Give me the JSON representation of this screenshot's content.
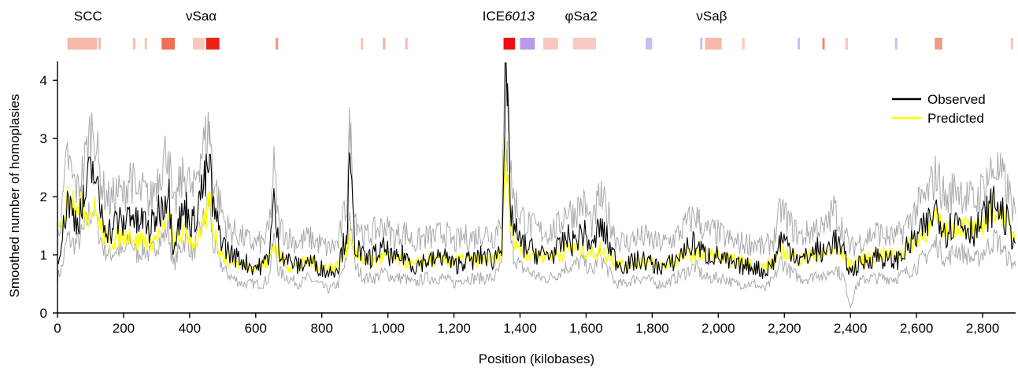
{
  "chart_data": {
    "type": "line",
    "title": "",
    "xlabel": "Position (kilobases)",
    "ylabel": "Smoothed number of homoplasies",
    "xlim": [
      0,
      2900
    ],
    "ylim": [
      0,
      4.3
    ],
    "x_ticks": [
      0,
      200,
      400,
      600,
      800,
      1000,
      1200,
      1400,
      1600,
      1800,
      2000,
      2200,
      2400,
      2600,
      2800
    ],
    "x_tick_labels": [
      "0",
      "200",
      "400",
      "600",
      "800",
      "1,000",
      "1,200",
      "1,400",
      "1,600",
      "1,800",
      "2,000",
      "2,200",
      "2,400",
      "2,600",
      "2,800"
    ],
    "y_ticks": [
      0,
      1,
      2,
      3,
      4
    ],
    "y_tick_labels": [
      "0",
      "1",
      "2",
      "3",
      "4"
    ],
    "grid": false,
    "legend": {
      "placement": "top-right",
      "entries": [
        {
          "label": "Observed",
          "color": "#000000"
        },
        {
          "label": "Predicted",
          "color": "#ffff00"
        }
      ]
    },
    "band_color": "#aaaaaa",
    "series": [
      {
        "name": "Observed",
        "color": "#000000",
        "x": [
          0,
          15,
          30,
          45,
          60,
          80,
          95,
          110,
          125,
          140,
          160,
          180,
          200,
          220,
          240,
          260,
          280,
          300,
          320,
          335,
          350,
          370,
          390,
          410,
          430,
          450,
          460,
          470,
          490,
          510,
          530,
          560,
          590,
          620,
          640,
          655,
          670,
          700,
          730,
          760,
          790,
          820,
          850,
          875,
          885,
          900,
          930,
          960,
          990,
          1020,
          1050,
          1080,
          1110,
          1140,
          1170,
          1200,
          1230,
          1260,
          1290,
          1320,
          1345,
          1355,
          1362,
          1370,
          1380,
          1400,
          1430,
          1460,
          1490,
          1520,
          1540,
          1560,
          1590,
          1620,
          1640,
          1660,
          1690,
          1720,
          1750,
          1780,
          1810,
          1840,
          1870,
          1900,
          1930,
          1960,
          1990,
          2020,
          2050,
          2080,
          2110,
          2140,
          2170,
          2190,
          2220,
          2250,
          2280,
          2300,
          2320,
          2350,
          2380,
          2400,
          2420,
          2450,
          2480,
          2510,
          2540,
          2570,
          2600,
          2630,
          2660,
          2690,
          2720,
          2750,
          2780,
          2810,
          2840,
          2870,
          2900
        ],
        "y": [
          1.0,
          1.3,
          2.0,
          1.7,
          1.6,
          1.9,
          2.3,
          2.5,
          1.9,
          1.6,
          1.4,
          1.6,
          1.5,
          1.8,
          1.5,
          1.6,
          1.4,
          1.7,
          1.9,
          2.2,
          1.2,
          1.6,
          1.8,
          1.5,
          2.0,
          2.3,
          2.6,
          1.8,
          1.4,
          1.1,
          1.0,
          0.9,
          0.8,
          0.8,
          1.0,
          1.9,
          1.1,
          0.9,
          0.8,
          0.9,
          0.8,
          0.7,
          0.8,
          1.4,
          2.5,
          1.2,
          0.9,
          1.0,
          1.1,
          0.9,
          1.0,
          0.8,
          0.9,
          0.9,
          1.0,
          0.8,
          0.9,
          0.9,
          1.0,
          0.9,
          1.2,
          3.7,
          3.6,
          1.9,
          1.5,
          1.2,
          1.1,
          1.0,
          1.0,
          1.1,
          1.3,
          1.2,
          1.4,
          1.1,
          1.5,
          1.3,
          0.9,
          0.8,
          0.9,
          0.9,
          0.8,
          0.8,
          0.9,
          1.1,
          1.2,
          1.0,
          1.0,
          0.9,
          0.8,
          0.8,
          0.8,
          0.7,
          0.9,
          1.3,
          1.1,
          0.9,
          1.0,
          1.1,
          1.0,
          1.3,
          1.0,
          0.7,
          0.8,
          0.9,
          1.0,
          0.9,
          0.9,
          1.1,
          1.3,
          1.5,
          1.8,
          1.4,
          1.6,
          1.5,
          1.4,
          1.7,
          1.9,
          1.6,
          1.2
        ],
        "band_low": [
          0.6,
          0.8,
          1.3,
          1.2,
          1.2,
          1.4,
          1.7,
          1.8,
          1.4,
          1.1,
          1.0,
          1.1,
          1.0,
          1.3,
          1.0,
          1.1,
          1.0,
          1.2,
          1.3,
          1.5,
          0.8,
          1.1,
          1.3,
          1.0,
          1.4,
          1.7,
          1.9,
          1.2,
          0.9,
          0.7,
          0.6,
          0.5,
          0.5,
          0.5,
          0.6,
          1.3,
          0.7,
          0.6,
          0.5,
          0.6,
          0.5,
          0.4,
          0.5,
          0.9,
          1.8,
          0.8,
          0.6,
          0.6,
          0.7,
          0.6,
          0.6,
          0.5,
          0.6,
          0.6,
          0.6,
          0.5,
          0.6,
          0.6,
          0.6,
          0.6,
          0.8,
          2.7,
          2.6,
          1.3,
          1.0,
          0.8,
          0.7,
          0.6,
          0.6,
          0.7,
          0.8,
          0.8,
          0.9,
          0.7,
          1.0,
          0.8,
          0.5,
          0.5,
          0.6,
          0.6,
          0.5,
          0.5,
          0.6,
          0.7,
          0.8,
          0.6,
          0.6,
          0.6,
          0.5,
          0.5,
          0.5,
          0.4,
          0.6,
          0.9,
          0.7,
          0.6,
          0.6,
          0.7,
          0.6,
          0.8,
          0.6,
          0.1,
          0.5,
          0.6,
          0.6,
          0.6,
          0.6,
          0.7,
          0.8,
          1.0,
          1.2,
          0.9,
          1.1,
          1.0,
          0.9,
          1.1,
          1.3,
          1.0,
          0.8
        ],
        "band_high": [
          1.4,
          1.8,
          2.7,
          2.3,
          2.1,
          2.5,
          3.0,
          3.3,
          2.5,
          2.1,
          1.9,
          2.1,
          2.0,
          2.4,
          2.0,
          2.1,
          1.9,
          2.3,
          2.6,
          2.9,
          1.7,
          2.2,
          2.4,
          2.0,
          2.7,
          3.0,
          3.2,
          2.4,
          1.9,
          1.5,
          1.4,
          1.3,
          1.2,
          1.2,
          1.4,
          2.5,
          1.5,
          1.3,
          1.2,
          1.3,
          1.2,
          1.1,
          1.2,
          1.9,
          3.2,
          1.7,
          1.3,
          1.4,
          1.5,
          1.3,
          1.4,
          1.2,
          1.3,
          1.3,
          1.4,
          1.2,
          1.3,
          1.3,
          1.4,
          1.3,
          1.7,
          4.3,
          4.2,
          2.5,
          2.0,
          1.7,
          1.5,
          1.4,
          1.4,
          1.5,
          1.8,
          1.7,
          1.9,
          1.5,
          2.0,
          1.8,
          1.3,
          1.2,
          1.3,
          1.3,
          1.2,
          1.2,
          1.3,
          1.5,
          1.7,
          1.4,
          1.4,
          1.3,
          1.2,
          1.2,
          1.2,
          1.1,
          1.3,
          1.8,
          1.5,
          1.3,
          1.4,
          1.5,
          1.4,
          1.8,
          1.4,
          1.1,
          1.2,
          1.3,
          1.4,
          1.3,
          1.3,
          1.5,
          1.8,
          2.0,
          2.4,
          1.9,
          2.2,
          2.0,
          1.9,
          2.3,
          2.5,
          2.2,
          1.7
        ]
      },
      {
        "name": "Predicted",
        "color": "#ffff00",
        "x": [
          0,
          15,
          30,
          45,
          60,
          80,
          95,
          110,
          125,
          140,
          160,
          180,
          200,
          220,
          240,
          260,
          280,
          300,
          320,
          335,
          350,
          370,
          390,
          410,
          430,
          450,
          460,
          470,
          490,
          510,
          530,
          560,
          590,
          620,
          640,
          655,
          670,
          700,
          730,
          760,
          790,
          820,
          850,
          875,
          885,
          900,
          930,
          960,
          990,
          1020,
          1050,
          1080,
          1110,
          1140,
          1170,
          1200,
          1230,
          1260,
          1290,
          1320,
          1345,
          1355,
          1362,
          1370,
          1380,
          1400,
          1430,
          1460,
          1490,
          1520,
          1540,
          1560,
          1590,
          1620,
          1640,
          1660,
          1690,
          1720,
          1750,
          1780,
          1810,
          1840,
          1870,
          1900,
          1930,
          1960,
          1990,
          2020,
          2050,
          2080,
          2110,
          2140,
          2170,
          2190,
          2220,
          2250,
          2280,
          2300,
          2320,
          2350,
          2380,
          2400,
          2420,
          2450,
          2480,
          2510,
          2540,
          2570,
          2600,
          2630,
          2660,
          2690,
          2720,
          2750,
          2780,
          2810,
          2840,
          2870,
          2900
        ],
        "y": [
          1.4,
          1.5,
          2.0,
          2.0,
          1.9,
          1.8,
          1.7,
          1.8,
          1.6,
          1.3,
          1.2,
          1.3,
          1.3,
          1.4,
          1.2,
          1.3,
          1.2,
          1.3,
          1.4,
          1.8,
          1.2,
          1.3,
          1.4,
          1.2,
          1.3,
          1.6,
          2.0,
          1.5,
          1.1,
          0.9,
          0.9,
          0.8,
          0.8,
          0.8,
          0.9,
          1.2,
          1.0,
          0.8,
          0.8,
          0.9,
          0.8,
          0.8,
          0.8,
          1.1,
          1.4,
          1.0,
          0.9,
          0.9,
          1.0,
          0.9,
          0.9,
          0.8,
          0.9,
          0.9,
          0.9,
          0.9,
          0.9,
          0.9,
          0.9,
          0.9,
          1.0,
          2.9,
          2.2,
          1.5,
          1.3,
          1.1,
          1.0,
          1.0,
          1.0,
          1.0,
          1.1,
          1.1,
          1.1,
          1.0,
          1.1,
          1.0,
          0.9,
          0.8,
          0.9,
          0.9,
          0.8,
          0.8,
          0.9,
          1.0,
          1.0,
          1.0,
          1.0,
          0.9,
          0.9,
          0.9,
          0.8,
          0.8,
          0.9,
          1.1,
          1.0,
          0.9,
          1.0,
          1.0,
          1.0,
          1.1,
          1.0,
          0.8,
          0.9,
          0.9,
          1.0,
          1.0,
          1.0,
          1.1,
          1.3,
          1.4,
          1.6,
          1.4,
          1.5,
          1.5,
          1.4,
          1.6,
          1.8,
          1.6,
          1.3
        ]
      }
    ],
    "genomic_elements": [
      {
        "label": "SCC",
        "start": 25,
        "end": 160
      },
      {
        "label": "νSaα",
        "start": 390,
        "end": 480
      },
      {
        "label": "ICE6013",
        "label_prefix": "ICE",
        "label_italic": "6013",
        "start": 1345,
        "end": 1385
      },
      {
        "label": "φSa2",
        "start": 1510,
        "end": 1660
      },
      {
        "label": "νSaβ",
        "start": 1940,
        "end": 2020
      }
    ],
    "feature_track": [
      {
        "start": 30,
        "end": 120,
        "color": "#f8b8aa"
      },
      {
        "start": 124,
        "end": 130,
        "color": "#f8b8aa"
      },
      {
        "start": 228,
        "end": 236,
        "color": "#f8c2b6"
      },
      {
        "start": 264,
        "end": 270,
        "color": "#f8c2b6"
      },
      {
        "start": 315,
        "end": 355,
        "color": "#ee7055"
      },
      {
        "start": 410,
        "end": 445,
        "color": "#f8c8bc"
      },
      {
        "start": 450,
        "end": 490,
        "color": "#ee2010"
      },
      {
        "start": 660,
        "end": 668,
        "color": "#f19b86"
      },
      {
        "start": 918,
        "end": 925,
        "color": "#f8c2b6"
      },
      {
        "start": 985,
        "end": 992,
        "color": "#f5b0a0"
      },
      {
        "start": 1052,
        "end": 1060,
        "color": "#f8c2b6"
      },
      {
        "start": 1350,
        "end": 1385,
        "color": "#ee1010"
      },
      {
        "start": 1400,
        "end": 1445,
        "color": "#b79ae8"
      },
      {
        "start": 1470,
        "end": 1515,
        "color": "#f8c8bc"
      },
      {
        "start": 1560,
        "end": 1630,
        "color": "#f8ccc2"
      },
      {
        "start": 1780,
        "end": 1800,
        "color": "#cdbcf0"
      },
      {
        "start": 1945,
        "end": 1952,
        "color": "#cdbcf0"
      },
      {
        "start": 1960,
        "end": 2010,
        "color": "#f8b8aa"
      },
      {
        "start": 2072,
        "end": 2080,
        "color": "#f8ccc2"
      },
      {
        "start": 2240,
        "end": 2247,
        "color": "#cdbcf0"
      },
      {
        "start": 2315,
        "end": 2322,
        "color": "#f08a72"
      },
      {
        "start": 2385,
        "end": 2392,
        "color": "#f8c2b6"
      },
      {
        "start": 2535,
        "end": 2542,
        "color": "#cdbcf0"
      },
      {
        "start": 2655,
        "end": 2678,
        "color": "#f19b86"
      },
      {
        "start": 2885,
        "end": 2891,
        "color": "#f8c2b6"
      }
    ]
  }
}
